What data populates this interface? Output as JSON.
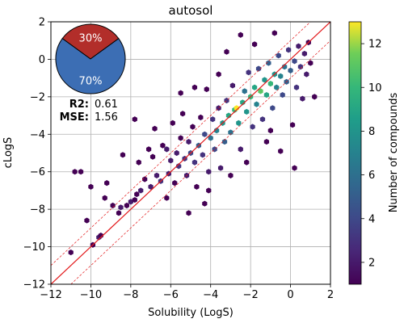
{
  "chart_data": {
    "type": "scatter",
    "subtype": "hexbin",
    "title": "autosol",
    "xlabel": "Solubility (LogS)",
    "ylabel": "cLogS",
    "xlim": [
      -12,
      2
    ],
    "ylim": [
      -12,
      2
    ],
    "x_ticks": [
      -12,
      -10,
      -8,
      -6,
      -4,
      -2,
      0,
      2
    ],
    "y_ticks": [
      -12,
      -10,
      -8,
      -6,
      -4,
      -2,
      0,
      2
    ],
    "grid": true,
    "reference_lines": {
      "identity": [
        [
          -12,
          -12
        ],
        [
          2,
          2
        ]
      ],
      "upper_band": [
        [
          -12,
          -11
        ],
        [
          1,
          2
        ]
      ],
      "lower_band": [
        [
          -11,
          -12
        ],
        [
          2,
          1
        ]
      ],
      "line_color": "#e31a1c"
    },
    "hexbin_centers": [
      [
        -11.0,
        -10.3,
        1
      ],
      [
        -10.8,
        -6.0,
        1
      ],
      [
        -10.5,
        -6.0,
        1
      ],
      [
        -10.2,
        -8.6,
        1
      ],
      [
        -10.0,
        -6.8,
        1
      ],
      [
        -9.9,
        -9.9,
        1
      ],
      [
        -9.6,
        -9.5,
        2
      ],
      [
        -9.5,
        -9.4,
        1
      ],
      [
        -9.2,
        -6.6,
        1
      ],
      [
        -8.9,
        -7.8,
        1
      ],
      [
        -8.6,
        -8.2,
        1
      ],
      [
        -8.5,
        -7.9,
        2
      ],
      [
        -8.2,
        -7.8,
        1
      ],
      [
        -8.0,
        -7.6,
        2
      ],
      [
        -7.8,
        -7.5,
        1
      ],
      [
        -7.7,
        -7.2,
        1
      ],
      [
        -7.6,
        -5.5,
        1
      ],
      [
        -7.5,
        -7.0,
        2
      ],
      [
        -7.3,
        -6.4,
        1
      ],
      [
        -7.1,
        -4.8,
        1
      ],
      [
        -7.0,
        -6.8,
        2
      ],
      [
        -6.9,
        -5.2,
        1
      ],
      [
        -6.8,
        -3.7,
        1
      ],
      [
        -6.7,
        -6.2,
        2
      ],
      [
        -6.5,
        -6.5,
        3
      ],
      [
        -6.4,
        -4.6,
        1
      ],
      [
        -6.2,
        -4.8,
        2
      ],
      [
        -6.1,
        -6.1,
        2
      ],
      [
        -6.0,
        -5.4,
        2
      ],
      [
        -5.9,
        -3.4,
        1
      ],
      [
        -5.8,
        -6.6,
        1
      ],
      [
        -5.7,
        -5.0,
        2
      ],
      [
        -5.6,
        -5.7,
        3
      ],
      [
        -5.5,
        -4.2,
        1
      ],
      [
        -5.4,
        -2.9,
        1
      ],
      [
        -5.3,
        -5.3,
        3
      ],
      [
        -5.2,
        -6.2,
        2
      ],
      [
        -5.1,
        -4.4,
        2
      ],
      [
        -5.0,
        -5.0,
        4
      ],
      [
        -4.9,
        -3.6,
        1
      ],
      [
        -4.8,
        -5.5,
        3
      ],
      [
        -4.7,
        -6.8,
        1
      ],
      [
        -4.6,
        -4.6,
        5
      ],
      [
        -4.5,
        -3.1,
        1
      ],
      [
        -4.4,
        -5.1,
        3
      ],
      [
        -4.3,
        -4.0,
        4
      ],
      [
        -4.2,
        -1.6,
        1
      ],
      [
        -4.1,
        -6.0,
        2
      ],
      [
        -4.0,
        -4.2,
        6
      ],
      [
        -3.9,
        -3.2,
        3
      ],
      [
        -3.8,
        -4.8,
        4
      ],
      [
        -3.7,
        -3.8,
        7
      ],
      [
        -3.6,
        -2.6,
        2
      ],
      [
        -3.5,
        -5.8,
        2
      ],
      [
        -3.4,
        -3.4,
        8
      ],
      [
        -3.3,
        -4.4,
        5
      ],
      [
        -3.2,
        -2.2,
        3
      ],
      [
        -3.1,
        -3.0,
        9
      ],
      [
        -3.0,
        -3.9,
        6
      ],
      [
        -2.9,
        -1.4,
        2
      ],
      [
        -2.8,
        -2.7,
        10
      ],
      [
        -2.7,
        -2.6,
        13
      ],
      [
        -2.6,
        -3.4,
        8
      ],
      [
        -2.5,
        -4.8,
        2
      ],
      [
        -2.4,
        -2.3,
        9
      ],
      [
        -2.3,
        -1.7,
        6
      ],
      [
        -2.2,
        -2.8,
        8
      ],
      [
        -2.1,
        -0.7,
        3
      ],
      [
        -2.0,
        -2.0,
        10
      ],
      [
        -1.9,
        -3.6,
        3
      ],
      [
        -1.8,
        -1.5,
        9
      ],
      [
        -1.7,
        -2.4,
        7
      ],
      [
        -1.6,
        -0.5,
        4
      ],
      [
        -1.5,
        -1.7,
        11
      ],
      [
        -1.4,
        -3.2,
        3
      ],
      [
        -1.3,
        -1.1,
        8
      ],
      [
        -1.2,
        -1.9,
        9
      ],
      [
        -1.1,
        -0.2,
        5
      ],
      [
        -1.0,
        -1.3,
        10
      ],
      [
        -0.9,
        -2.6,
        4
      ],
      [
        -0.8,
        -0.8,
        8
      ],
      [
        -0.7,
        -1.5,
        7
      ],
      [
        -0.6,
        0.2,
        4
      ],
      [
        -0.5,
        -0.9,
        7
      ],
      [
        -0.4,
        -1.9,
        4
      ],
      [
        -0.3,
        -0.4,
        6
      ],
      [
        -0.2,
        -1.2,
        5
      ],
      [
        -0.1,
        0.5,
        3
      ],
      [
        0.0,
        -0.6,
        5
      ],
      [
        0.1,
        -3.5,
        1
      ],
      [
        0.2,
        -0.1,
        4
      ],
      [
        0.3,
        -1.5,
        3
      ],
      [
        0.4,
        0.7,
        2
      ],
      [
        0.5,
        -0.4,
        3
      ],
      [
        0.6,
        -2.1,
        2
      ],
      [
        0.7,
        0.3,
        2
      ],
      [
        0.8,
        -0.8,
        2
      ],
      [
        0.9,
        0.9,
        1
      ],
      [
        1.0,
        -0.2,
        1
      ],
      [
        1.2,
        -2.0,
        1
      ],
      [
        -2.5,
        1.3,
        1
      ],
      [
        -1.8,
        0.8,
        1
      ],
      [
        -0.8,
        1.4,
        1
      ],
      [
        -4.8,
        -1.5,
        1
      ],
      [
        -3.6,
        -0.8,
        1
      ],
      [
        -5.5,
        -1.8,
        1
      ],
      [
        -3.2,
        0.4,
        1
      ],
      [
        -4.1,
        -7.0,
        1
      ],
      [
        -3.0,
        -6.2,
        1
      ],
      [
        -2.2,
        -5.5,
        1
      ],
      [
        -1.2,
        -4.4,
        1
      ],
      [
        -0.5,
        -4.9,
        1
      ],
      [
        0.2,
        -5.8,
        1
      ],
      [
        -6.2,
        -7.4,
        1
      ],
      [
        -5.1,
        -8.2,
        1
      ],
      [
        -4.3,
        -7.7,
        1
      ],
      [
        -7.8,
        -3.2,
        1
      ],
      [
        -8.4,
        -5.1,
        1
      ],
      [
        -9.3,
        -7.4,
        1
      ],
      [
        -1.0,
        -3.8,
        1
      ]
    ],
    "colorbar": {
      "label": "Number of compounds",
      "min": 1,
      "max": 13,
      "ticks": [
        2,
        4,
        6,
        8,
        10,
        12
      ]
    },
    "stats": {
      "r2_label": "R2",
      "r2_value": "0.61",
      "mse_label": "MSE",
      "mse_value": "1.56"
    },
    "pie": {
      "slices": [
        {
          "label": "30%",
          "value": 30,
          "color": "#b22e2a"
        },
        {
          "label": "70%",
          "value": 70,
          "color": "#3c6eb4"
        }
      ]
    }
  }
}
